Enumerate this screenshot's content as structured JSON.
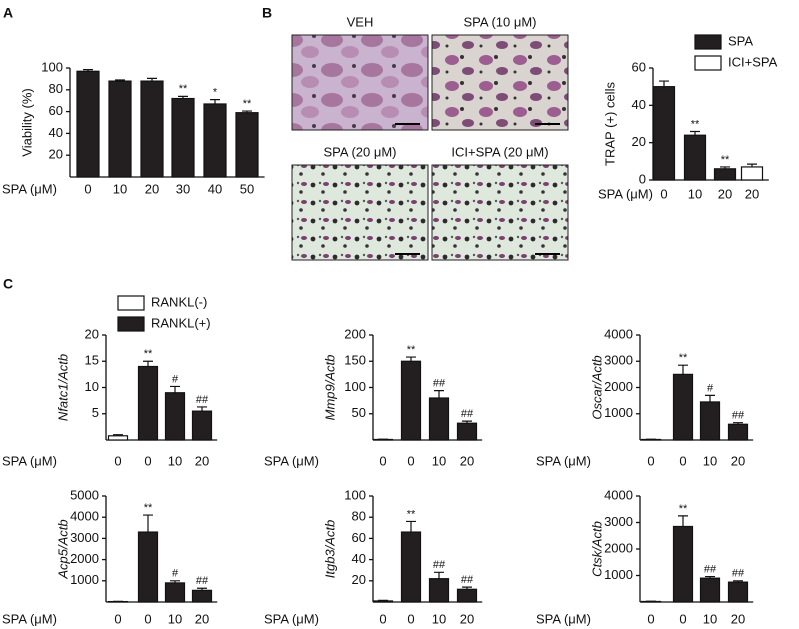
{
  "panel_labels": [
    "A",
    "B",
    "C"
  ],
  "images": [
    "VEH",
    "SPA (10  μM)",
    "SPA (20 μM)",
    "ICI+SPA (20 μM)"
  ],
  "chart_data": [
    {
      "type": "bar",
      "ylabel": "Viability (%)",
      "xlabel": "SPA (μM)",
      "categories": [
        "0",
        "10",
        "20",
        "30",
        "40",
        "50"
      ],
      "series": [
        {
          "color": "#231f20",
          "values": [
            97,
            88,
            88,
            72,
            67,
            59
          ],
          "errors": [
            1.5,
            1,
            2.5,
            2,
            4,
            1.5
          ]
        }
      ],
      "annotations": [
        null,
        null,
        null,
        "**",
        "*",
        "**"
      ],
      "ylim": [
        0,
        100
      ],
      "yticks": [
        20,
        40,
        60,
        80,
        100
      ],
      "legend": false
    },
    {
      "type": "bar",
      "ylabel": "TRAP (+) cells",
      "xlabel": "SPA (μM)",
      "categories": [
        "0",
        "10",
        "20",
        "20"
      ],
      "series": [
        {
          "name": "SPA",
          "color": "#231f20",
          "values": [
            50,
            24,
            6,
            null
          ],
          "errors": [
            3,
            2,
            1,
            null
          ]
        },
        {
          "name": "ICI+SPA",
          "color": "#ffffff",
          "values": [
            null,
            null,
            null,
            7
          ],
          "errors": [
            null,
            null,
            null,
            1.5
          ]
        }
      ],
      "annotations": [
        null,
        "**",
        "**",
        null
      ],
      "ylim": [
        0,
        60
      ],
      "yticks": [
        0,
        20,
        40,
        60
      ],
      "legend": true
    },
    {
      "type": "bar",
      "ylabel": "Nfatc1/Actb",
      "xlabel": "SPA (μM)",
      "categories": [
        "0",
        "0",
        "10",
        "20"
      ],
      "series": [
        {
          "name": "RANKL(-)",
          "color": "#ffffff",
          "values": [
            0.8,
            null,
            null,
            null
          ],
          "errors": [
            0.2,
            null,
            null,
            null
          ]
        },
        {
          "name": "RANKL(+)",
          "color": "#231f20",
          "values": [
            null,
            14,
            9,
            5.5
          ],
          "errors": [
            null,
            1,
            1.2,
            0.8
          ]
        }
      ],
      "annotations": [
        null,
        "**",
        "#",
        "##"
      ],
      "ylim": [
        0,
        20
      ],
      "yticks": [
        5,
        10,
        15,
        20
      ],
      "legend": true
    },
    {
      "type": "bar",
      "ylabel": "Mmp9/Actb",
      "xlabel": "SPA (μM)",
      "categories": [
        "0",
        "0",
        "10",
        "20"
      ],
      "series": [
        {
          "color": "#ffffff",
          "values": [
            1,
            null,
            null,
            null
          ],
          "errors": [
            0.5,
            null,
            null,
            null
          ]
        },
        {
          "color": "#231f20",
          "values": [
            null,
            150,
            80,
            32
          ],
          "errors": [
            null,
            8,
            14,
            4
          ]
        }
      ],
      "annotations": [
        null,
        "**",
        "##",
        "##"
      ],
      "ylim": [
        0,
        200
      ],
      "yticks": [
        50,
        100,
        150,
        200
      ],
      "legend": false
    },
    {
      "type": "bar",
      "ylabel": "Oscar/Actb",
      "xlabel": "SPA (μM)",
      "categories": [
        "0",
        "0",
        "10",
        "20"
      ],
      "series": [
        {
          "color": "#ffffff",
          "values": [
            20,
            null,
            null,
            null
          ],
          "errors": [
            10,
            null,
            null,
            null
          ]
        },
        {
          "color": "#231f20",
          "values": [
            null,
            2500,
            1450,
            600
          ],
          "errors": [
            null,
            350,
            250,
            60
          ]
        }
      ],
      "annotations": [
        null,
        "**",
        "#",
        "##"
      ],
      "ylim": [
        0,
        4000
      ],
      "yticks": [
        1000,
        2000,
        3000,
        4000
      ],
      "legend": false
    },
    {
      "type": "bar",
      "ylabel": "Acp5/Actb",
      "xlabel": "SPA (μM)",
      "categories": [
        "0",
        "0",
        "10",
        "20"
      ],
      "series": [
        {
          "color": "#ffffff",
          "values": [
            20,
            null,
            null,
            null
          ],
          "errors": [
            10,
            null,
            null,
            null
          ]
        },
        {
          "color": "#231f20",
          "values": [
            null,
            3300,
            900,
            550
          ],
          "errors": [
            null,
            800,
            100,
            100
          ]
        }
      ],
      "annotations": [
        null,
        "**",
        "#",
        "##"
      ],
      "ylim": [
        0,
        5000
      ],
      "yticks": [
        1000,
        2000,
        3000,
        4000,
        5000
      ],
      "legend": false
    },
    {
      "type": "bar",
      "ylabel": "Itgb3/Actb",
      "xlabel": "SPA (μM)",
      "categories": [
        "0",
        "0",
        "10",
        "20"
      ],
      "series": [
        {
          "color": "#ffffff",
          "values": [
            1,
            null,
            null,
            null
          ],
          "errors": [
            0.5,
            null,
            null,
            null
          ]
        },
        {
          "color": "#231f20",
          "values": [
            null,
            66,
            22,
            12
          ],
          "errors": [
            null,
            10,
            6,
            2
          ]
        }
      ],
      "annotations": [
        null,
        "**",
        "##",
        "##"
      ],
      "ylim": [
        0,
        100
      ],
      "yticks": [
        20,
        40,
        60,
        80,
        100
      ],
      "legend": false
    },
    {
      "type": "bar",
      "ylabel": "Ctsk/Actb",
      "xlabel": "SPA (μM)",
      "categories": [
        "0",
        "0",
        "10",
        "20"
      ],
      "series": [
        {
          "color": "#ffffff",
          "values": [
            20,
            null,
            null,
            null
          ],
          "errors": [
            10,
            null,
            null,
            null
          ]
        },
        {
          "color": "#231f20",
          "values": [
            null,
            2850,
            900,
            750
          ],
          "errors": [
            null,
            400,
            60,
            50
          ]
        }
      ],
      "annotations": [
        null,
        "**",
        "##",
        "##"
      ],
      "ylim": [
        0,
        4000
      ],
      "yticks": [
        1000,
        2000,
        3000,
        4000
      ],
      "legend": false
    }
  ]
}
